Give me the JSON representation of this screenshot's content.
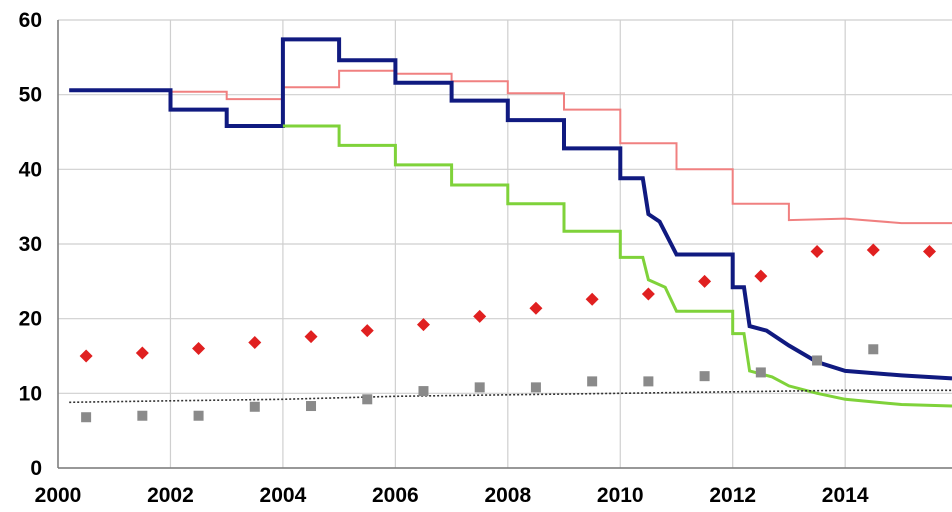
{
  "chart_data": {
    "type": "line",
    "title": "",
    "xlabel": "",
    "ylabel": "",
    "xlim": [
      2000,
      2015.9
    ],
    "ylim": [
      0,
      60
    ],
    "x_ticks": [
      "2000",
      "2002",
      "2004",
      "2006",
      "2008",
      "2010",
      "2012",
      "2014"
    ],
    "y_ticks": [
      "0",
      "10",
      "20",
      "30",
      "40",
      "50",
      "60"
    ],
    "grid": true,
    "legend": "none",
    "series": [
      {
        "type": "line",
        "color": "#f08080",
        "points": [
          [
            2000.2,
            50.6
          ],
          [
            2002.0,
            50.6
          ],
          [
            2002.0,
            50.4
          ],
          [
            2003.0,
            50.4
          ],
          [
            2003.0,
            49.4
          ],
          [
            2004.0,
            49.4
          ],
          [
            2004.0,
            51.0
          ],
          [
            2005.0,
            51.0
          ],
          [
            2005.0,
            53.2
          ],
          [
            2006.0,
            53.2
          ],
          [
            2006.0,
            52.8
          ],
          [
            2007.0,
            52.8
          ],
          [
            2007.0,
            51.8
          ],
          [
            2008.0,
            51.8
          ],
          [
            2008.0,
            50.2
          ],
          [
            2009.0,
            50.2
          ],
          [
            2009.0,
            48.0
          ],
          [
            2010.0,
            48.0
          ],
          [
            2010.0,
            43.5
          ],
          [
            2011.0,
            43.5
          ],
          [
            2011.0,
            40.0
          ],
          [
            2012.0,
            40.0
          ],
          [
            2012.0,
            35.4
          ],
          [
            2013.0,
            35.4
          ],
          [
            2013.0,
            33.2
          ],
          [
            2014.0,
            33.4
          ],
          [
            2015.0,
            32.8
          ],
          [
            2015.9,
            32.8
          ]
        ]
      },
      {
        "type": "line",
        "color": "#101a80",
        "points": [
          [
            2000.2,
            50.6
          ],
          [
            2002.0,
            50.6
          ],
          [
            2002.0,
            48.0
          ],
          [
            2003.0,
            48.0
          ],
          [
            2003.0,
            45.8
          ],
          [
            2004.0,
            45.8
          ],
          [
            2004.0,
            57.4
          ],
          [
            2005.0,
            57.4
          ],
          [
            2005.0,
            54.6
          ],
          [
            2006.0,
            54.6
          ],
          [
            2006.0,
            51.6
          ],
          [
            2007.0,
            51.6
          ],
          [
            2007.0,
            49.2
          ],
          [
            2008.0,
            49.2
          ],
          [
            2008.0,
            46.6
          ],
          [
            2009.0,
            46.6
          ],
          [
            2009.0,
            42.8
          ],
          [
            2010.0,
            42.8
          ],
          [
            2010.0,
            38.8
          ],
          [
            2010.4,
            38.8
          ],
          [
            2010.5,
            34.0
          ],
          [
            2010.7,
            33.0
          ],
          [
            2011.0,
            28.6
          ],
          [
            2012.0,
            28.6
          ],
          [
            2012.0,
            24.2
          ],
          [
            2012.2,
            24.2
          ],
          [
            2012.3,
            19.0
          ],
          [
            2012.6,
            18.4
          ],
          [
            2013.0,
            16.4
          ],
          [
            2013.5,
            14.2
          ],
          [
            2014.0,
            13.0
          ],
          [
            2015.0,
            12.4
          ],
          [
            2015.9,
            12.0
          ]
        ]
      },
      {
        "type": "line",
        "color": "#7fd23a",
        "points": [
          [
            2004.0,
            45.8
          ],
          [
            2005.0,
            45.8
          ],
          [
            2005.0,
            43.2
          ],
          [
            2006.0,
            43.2
          ],
          [
            2006.0,
            40.6
          ],
          [
            2007.0,
            40.6
          ],
          [
            2007.0,
            37.9
          ],
          [
            2008.0,
            37.9
          ],
          [
            2008.0,
            35.4
          ],
          [
            2009.0,
            35.4
          ],
          [
            2009.0,
            31.7
          ],
          [
            2010.0,
            31.7
          ],
          [
            2010.0,
            28.2
          ],
          [
            2010.4,
            28.2
          ],
          [
            2010.5,
            25.2
          ],
          [
            2010.8,
            24.2
          ],
          [
            2011.0,
            21.0
          ],
          [
            2012.0,
            21.0
          ],
          [
            2012.0,
            18.0
          ],
          [
            2012.2,
            18.0
          ],
          [
            2012.3,
            13.0
          ],
          [
            2012.7,
            12.2
          ],
          [
            2013.0,
            11.0
          ],
          [
            2013.5,
            10.0
          ],
          [
            2014.0,
            9.2
          ],
          [
            2015.0,
            8.5
          ],
          [
            2015.9,
            8.3
          ]
        ]
      },
      {
        "type": "line",
        "color": "#333333",
        "dashed": true,
        "points": [
          [
            2000.2,
            8.8
          ],
          [
            2002.0,
            9.0
          ],
          [
            2004.0,
            9.2
          ],
          [
            2006.0,
            9.6
          ],
          [
            2008.0,
            9.8
          ],
          [
            2010.0,
            10.0
          ],
          [
            2012.0,
            10.2
          ],
          [
            2014.0,
            10.4
          ],
          [
            2015.9,
            10.4
          ]
        ]
      },
      {
        "type": "scatter",
        "marker": "diamond",
        "color": "#e02020",
        "points": [
          [
            2000.5,
            15.0
          ],
          [
            2001.5,
            15.4
          ],
          [
            2002.5,
            16.0
          ],
          [
            2003.5,
            16.8
          ],
          [
            2004.5,
            17.6
          ],
          [
            2005.5,
            18.4
          ],
          [
            2006.5,
            19.2
          ],
          [
            2007.5,
            20.3
          ],
          [
            2008.5,
            21.4
          ],
          [
            2009.5,
            22.6
          ],
          [
            2010.5,
            23.3
          ],
          [
            2011.5,
            25.0
          ],
          [
            2012.5,
            25.7
          ],
          [
            2013.5,
            29.0
          ],
          [
            2014.5,
            29.2
          ],
          [
            2015.5,
            29.0
          ]
        ]
      },
      {
        "type": "scatter",
        "marker": "square",
        "color": "#8a8a8a",
        "points": [
          [
            2000.5,
            6.8
          ],
          [
            2001.5,
            7.0
          ],
          [
            2002.5,
            7.0
          ],
          [
            2003.5,
            8.2
          ],
          [
            2004.5,
            8.3
          ],
          [
            2005.5,
            9.2
          ],
          [
            2006.5,
            10.3
          ],
          [
            2007.5,
            10.8
          ],
          [
            2008.5,
            10.8
          ],
          [
            2009.5,
            11.6
          ],
          [
            2010.5,
            11.6
          ],
          [
            2011.5,
            12.3
          ],
          [
            2012.5,
            12.8
          ],
          [
            2013.5,
            14.4
          ],
          [
            2014.5,
            15.9
          ]
        ]
      }
    ]
  }
}
